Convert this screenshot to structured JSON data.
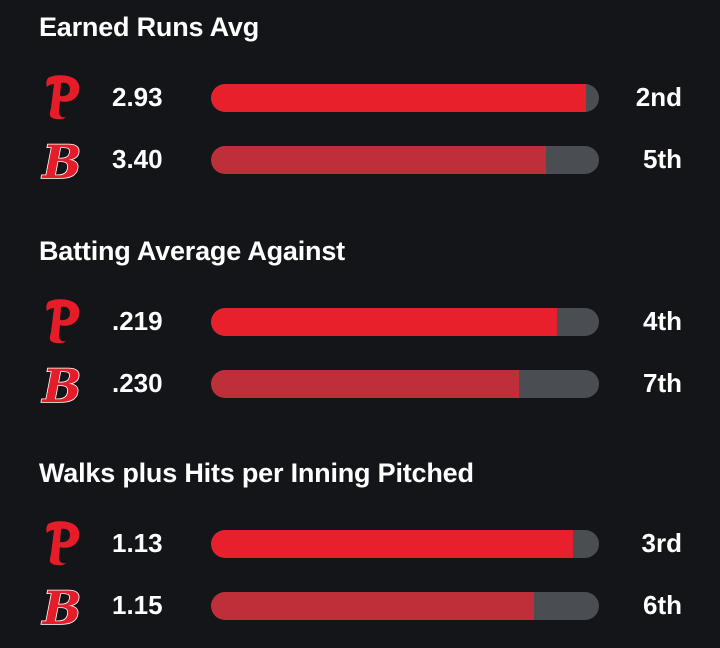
{
  "chart_data": [
    {
      "type": "bar",
      "title": "Earned Runs Avg",
      "series": [
        {
          "team": "phillies",
          "value": "2.93",
          "rank": "2nd",
          "fill": 0.966
        },
        {
          "team": "redsox",
          "value": "3.40",
          "rank": "5th",
          "fill": 0.863
        }
      ]
    },
    {
      "type": "bar",
      "title": "Batting Average Against",
      "series": [
        {
          "team": "phillies",
          "value": ".219",
          "rank": "4th",
          "fill": 0.892
        },
        {
          "team": "redsox",
          "value": ".230",
          "rank": "7th",
          "fill": 0.794
        }
      ]
    },
    {
      "type": "bar",
      "title": "Walks plus Hits per Inning Pitched",
      "series": [
        {
          "team": "phillies",
          "value": "1.13",
          "rank": "3rd",
          "fill": 0.933
        },
        {
          "team": "redsox",
          "value": "1.15",
          "rank": "6th",
          "fill": 0.832
        }
      ]
    }
  ],
  "colors": {
    "background": "#131519",
    "phillies_bar": "#e8202c",
    "redsox_bar": "#bf2f3a",
    "track": "#4a4d52",
    "logo_red": "#e51d2a"
  },
  "icons": {
    "phillies": "phillies-p-logo-icon",
    "redsox": "redsox-b-logo-icon"
  }
}
